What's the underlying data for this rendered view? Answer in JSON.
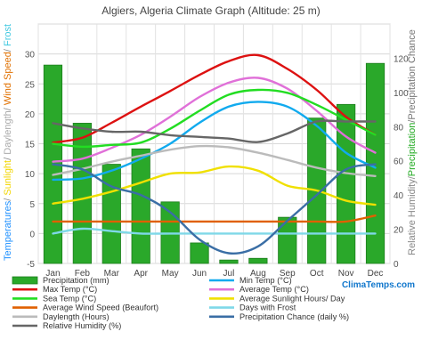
{
  "chart_data": {
    "type": "bar+line",
    "title": "Algiers, Algeria Climate Graph (Altitude: 25 m)",
    "categories": [
      "Jan",
      "Feb",
      "Mar",
      "Apr",
      "May",
      "Jun",
      "Jul",
      "Aug",
      "Sep",
      "Oct",
      "Nov",
      "Dec"
    ],
    "left_axis": {
      "segments": [
        {
          "text": "Temperatures",
          "color": "#1e90ff"
        },
        {
          "text": "/ ",
          "color": "#888888"
        },
        {
          "text": "Sunlight",
          "color": "#f2d600"
        },
        {
          "text": "/ ",
          "color": "#888888"
        },
        {
          "text": "Daylength",
          "color": "#aaaaaa"
        },
        {
          "text": "/ ",
          "color": "#888888"
        },
        {
          "text": "Wind Speed",
          "color": "#e07000"
        },
        {
          "text": "/ ",
          "color": "#888888"
        },
        {
          "text": "Frost",
          "color": "#40c8e0"
        }
      ],
      "ylim": [
        -5,
        35
      ],
      "ticks": [
        "-5",
        "0",
        "5",
        "10",
        "15",
        "20",
        "25",
        "30"
      ]
    },
    "right_axis": {
      "segments": [
        {
          "text": "Relative Humidity",
          "color": "#888888"
        },
        {
          "text": "/",
          "color": "#888888"
        },
        {
          "text": "Precipitation",
          "color": "#22aa22"
        },
        {
          "text": "/Precipitation Chance",
          "color": "#777777"
        }
      ],
      "ylim": [
        0,
        140
      ],
      "ticks": [
        "0",
        "20",
        "40",
        "60",
        "80",
        "100",
        "120"
      ]
    },
    "bars": {
      "name": "Precipitation (mm)",
      "color": "#2aa82a",
      "values": [
        116,
        82,
        58,
        67,
        36,
        12,
        2,
        3,
        27,
        85,
        93,
        117
      ]
    },
    "series": [
      {
        "name": "Max Temp (°C)",
        "color": "#dd1111",
        "axis": "left",
        "values": [
          15.2,
          16.0,
          18.5,
          21.2,
          23.8,
          26.5,
          28.8,
          29.8,
          27.5,
          24.0,
          19.5,
          16.5
        ]
      },
      {
        "name": "Average Temp (°C)",
        "color": "#e070d8",
        "axis": "left",
        "values": [
          12.0,
          12.5,
          14.3,
          16.5,
          19.5,
          22.8,
          25.2,
          26.0,
          24.2,
          20.5,
          16.2,
          13.5
        ]
      },
      {
        "name": "Sea Temp (°C)",
        "color": "#22dd22",
        "axis": "left",
        "values": [
          15.0,
          14.5,
          14.8,
          15.2,
          17.5,
          20.5,
          23.2,
          24.0,
          23.5,
          21.5,
          19.0,
          16.5
        ]
      },
      {
        "name": "Min Temp (°C)",
        "color": "#11aaee",
        "axis": "left",
        "values": [
          9.0,
          9.2,
          10.5,
          12.5,
          15.0,
          18.5,
          21.2,
          22.0,
          21.2,
          18.0,
          13.5,
          11.0
        ]
      },
      {
        "name": "Daylength (Hours)",
        "color": "#bbbbbb",
        "axis": "left",
        "values": [
          9.8,
          10.8,
          12.0,
          13.0,
          14.0,
          14.6,
          14.4,
          13.5,
          12.3,
          11.0,
          10.1,
          9.6
        ]
      },
      {
        "name": "Average Sunlight Hours/ Day",
        "color": "#f0e000",
        "axis": "left",
        "values": [
          5.0,
          5.8,
          7.0,
          8.5,
          10.0,
          10.2,
          11.2,
          10.5,
          8.0,
          7.2,
          5.5,
          4.8
        ]
      },
      {
        "name": "Average Wind Speed (Beaufort)",
        "color": "#e06000",
        "axis": "left",
        "values": [
          2,
          2,
          2,
          2,
          2,
          2,
          2,
          2,
          2,
          2,
          2,
          3
        ]
      },
      {
        "name": "Days with Frost",
        "color": "#7fd8e8",
        "axis": "left",
        "values": [
          0,
          0.8,
          0.4,
          0,
          0,
          0,
          0,
          0,
          0,
          0,
          0,
          0
        ]
      },
      {
        "name": "Relative Humidity (%)",
        "color": "#666666",
        "axis": "right",
        "values": [
          82,
          79,
          77,
          77,
          75,
          74,
          73,
          71,
          76,
          83,
          83,
          83
        ]
      },
      {
        "name": "Precipitation Chance (daily %)",
        "color": "#3a6ea5",
        "axis": "right",
        "values": [
          58,
          55,
          45,
          40,
          30,
          14,
          6,
          10,
          25,
          40,
          55,
          58
        ]
      }
    ],
    "grid": true,
    "legend": "bottom",
    "watermark": "ClimaTemps.com"
  }
}
